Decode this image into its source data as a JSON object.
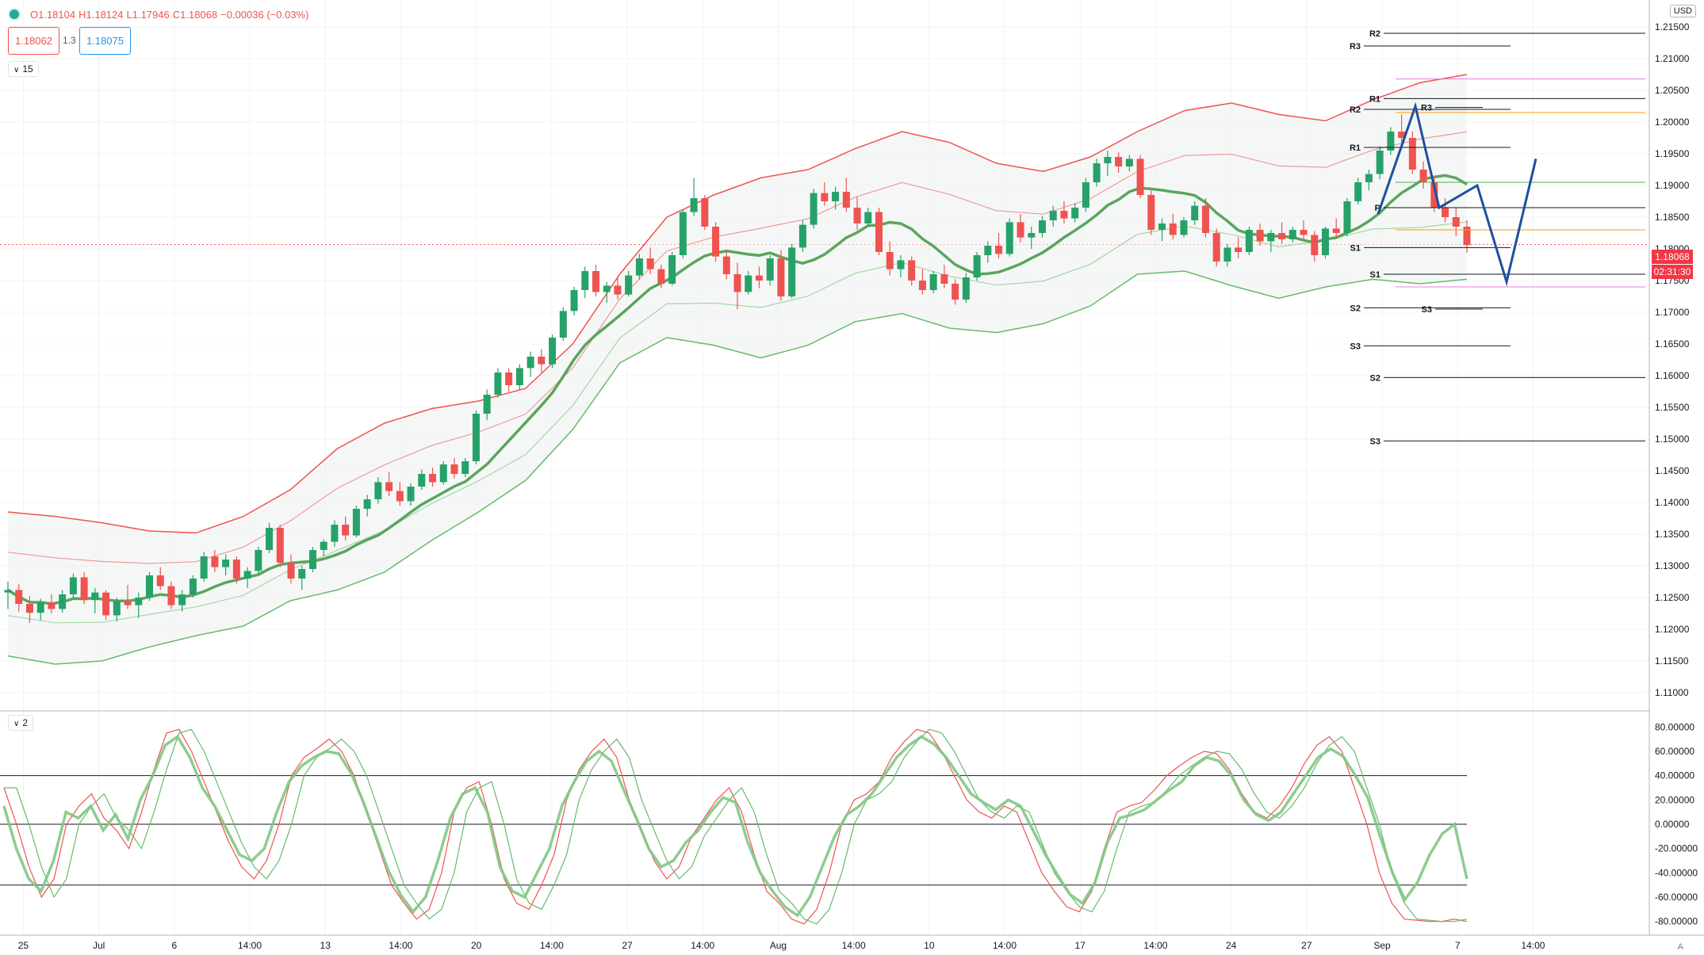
{
  "header": {
    "ohlc": {
      "open": "O1.18104",
      "high": "H1.18124",
      "low": "L1.17946",
      "close": "C1.18068",
      "change": "−0.00036 (−0.03%)"
    },
    "sell_price": "1.18062",
    "spread": "1.3",
    "buy_price": "1.18075",
    "main_pane_toggle": "15",
    "osc_pane_toggle": "2",
    "currency": "USD"
  },
  "price_axis_labels": [
    "1.21500",
    "1.21000",
    "1.20500",
    "1.20000",
    "1.19500",
    "1.19000",
    "1.18500",
    "1.18000",
    "1.17500",
    "1.17000",
    "1.16500",
    "1.16000",
    "1.15500",
    "1.15000",
    "1.14500",
    "1.14000",
    "1.13500",
    "1.13000",
    "1.12500",
    "1.12000",
    "1.11500",
    "1.11000"
  ],
  "current_price": {
    "value": "1.18068",
    "countdown": "02:31:30"
  },
  "osc_axis_labels": [
    "80.00000",
    "60.00000",
    "40.00000",
    "20.00000",
    "0.00000",
    "-20.00000",
    "-40.00000",
    "-60.00000",
    "-80.00000"
  ],
  "time_axis_labels": [
    "25",
    "Jul",
    "6",
    "14:00",
    "13",
    "14:00",
    "20",
    "14:00",
    "27",
    "14:00",
    "Aug",
    "14:00",
    "10",
    "14:00",
    "17",
    "14:00",
    "24",
    "27",
    "Sep",
    "7",
    "14:00"
  ],
  "pivot_labels": [
    "R2",
    "R3",
    "R1",
    "R2",
    "R3",
    "R1",
    "P",
    "S1",
    "S1",
    "S2",
    "S3",
    "S3",
    "S2",
    "S3"
  ],
  "chart_data": {
    "type": "candlestick",
    "symbol_quote": "USD",
    "y_range": [
      1.108,
      1.218
    ],
    "candles_ohlc": [
      [
        1.1258,
        1.1275,
        1.1232,
        1.1262
      ],
      [
        1.1262,
        1.1271,
        1.1228,
        1.124
      ],
      [
        1.124,
        1.1252,
        1.121,
        1.1226
      ],
      [
        1.1226,
        1.1248,
        1.1214,
        1.1242
      ],
      [
        1.1242,
        1.1255,
        1.1225,
        1.1232
      ],
      [
        1.1232,
        1.1262,
        1.1226,
        1.1255
      ],
      [
        1.1255,
        1.1288,
        1.1248,
        1.1282
      ],
      [
        1.1282,
        1.129,
        1.124,
        1.1246
      ],
      [
        1.1246,
        1.1265,
        1.1225,
        1.1258
      ],
      [
        1.1258,
        1.1262,
        1.1215,
        1.1222
      ],
      [
        1.1222,
        1.125,
        1.1212,
        1.1245
      ],
      [
        1.1245,
        1.127,
        1.1232,
        1.1238
      ],
      [
        1.1238,
        1.1258,
        1.1218,
        1.125
      ],
      [
        1.125,
        1.129,
        1.1245,
        1.1285
      ],
      [
        1.1285,
        1.1298,
        1.1262,
        1.1268
      ],
      [
        1.1268,
        1.1275,
        1.1232,
        1.1238
      ],
      [
        1.1238,
        1.1262,
        1.1228,
        1.1255
      ],
      [
        1.1255,
        1.1285,
        1.125,
        1.128
      ],
      [
        1.128,
        1.1322,
        1.1275,
        1.1315
      ],
      [
        1.1315,
        1.1325,
        1.129,
        1.1298
      ],
      [
        1.1298,
        1.1318,
        1.1285,
        1.131
      ],
      [
        1.131,
        1.1315,
        1.1272,
        1.128
      ],
      [
        1.128,
        1.1298,
        1.1265,
        1.1292
      ],
      [
        1.1292,
        1.133,
        1.1288,
        1.1325
      ],
      [
        1.1325,
        1.1368,
        1.132,
        1.136
      ],
      [
        1.136,
        1.1365,
        1.1298,
        1.1305
      ],
      [
        1.1305,
        1.1318,
        1.1272,
        1.128
      ],
      [
        1.128,
        1.13,
        1.1262,
        1.1295
      ],
      [
        1.1295,
        1.133,
        1.129,
        1.1325
      ],
      [
        1.1325,
        1.1342,
        1.1315,
        1.1338
      ],
      [
        1.1338,
        1.1372,
        1.133,
        1.1365
      ],
      [
        1.1365,
        1.1378,
        1.134,
        1.1348
      ],
      [
        1.1348,
        1.1395,
        1.1345,
        1.139
      ],
      [
        1.139,
        1.1412,
        1.1378,
        1.1405
      ],
      [
        1.1405,
        1.144,
        1.1398,
        1.1432
      ],
      [
        1.1432,
        1.1448,
        1.141,
        1.1418
      ],
      [
        1.1418,
        1.1432,
        1.1395,
        1.1402
      ],
      [
        1.1402,
        1.143,
        1.1395,
        1.1425
      ],
      [
        1.1425,
        1.1452,
        1.142,
        1.1445
      ],
      [
        1.1445,
        1.1455,
        1.1425,
        1.1432
      ],
      [
        1.1432,
        1.1465,
        1.1428,
        1.146
      ],
      [
        1.146,
        1.147,
        1.1438,
        1.1445
      ],
      [
        1.1445,
        1.147,
        1.144,
        1.1465
      ],
      [
        1.1465,
        1.1545,
        1.146,
        1.154
      ],
      [
        1.154,
        1.1578,
        1.153,
        1.157
      ],
      [
        1.157,
        1.1612,
        1.1565,
        1.1605
      ],
      [
        1.1605,
        1.1612,
        1.1575,
        1.1585
      ],
      [
        1.1585,
        1.1618,
        1.1578,
        1.1612
      ],
      [
        1.1612,
        1.1638,
        1.1598,
        1.163
      ],
      [
        1.163,
        1.1642,
        1.1605,
        1.1618
      ],
      [
        1.1618,
        1.1665,
        1.1612,
        1.166
      ],
      [
        1.166,
        1.1708,
        1.1655,
        1.1702
      ],
      [
        1.1702,
        1.174,
        1.1695,
        1.1735
      ],
      [
        1.1735,
        1.1772,
        1.1722,
        1.1765
      ],
      [
        1.1765,
        1.1775,
        1.1725,
        1.1732
      ],
      [
        1.1732,
        1.1748,
        1.1715,
        1.1742
      ],
      [
        1.1742,
        1.1755,
        1.172,
        1.1728
      ],
      [
        1.1728,
        1.1765,
        1.1725,
        1.1758
      ],
      [
        1.1758,
        1.1792,
        1.1752,
        1.1785
      ],
      [
        1.1785,
        1.1802,
        1.176,
        1.1768
      ],
      [
        1.1768,
        1.1775,
        1.1738,
        1.1745
      ],
      [
        1.1745,
        1.1795,
        1.1742,
        1.179
      ],
      [
        1.179,
        1.1862,
        1.1785,
        1.1858
      ],
      [
        1.1858,
        1.1912,
        1.1852,
        1.188
      ],
      [
        1.188,
        1.1885,
        1.183,
        1.1835
      ],
      [
        1.1835,
        1.1842,
        1.178,
        1.1788
      ],
      [
        1.1788,
        1.1795,
        1.1752,
        1.176
      ],
      [
        1.176,
        1.1778,
        1.1705,
        1.1732
      ],
      [
        1.1732,
        1.1765,
        1.1728,
        1.1758
      ],
      [
        1.1758,
        1.1772,
        1.1738,
        1.175
      ],
      [
        1.175,
        1.179,
        1.1742,
        1.1785
      ],
      [
        1.1785,
        1.1798,
        1.1718,
        1.1725
      ],
      [
        1.1725,
        1.1808,
        1.1722,
        1.1802
      ],
      [
        1.1802,
        1.1845,
        1.1795,
        1.1838
      ],
      [
        1.1838,
        1.1895,
        1.1832,
        1.1888
      ],
      [
        1.1888,
        1.1905,
        1.1868,
        1.1875
      ],
      [
        1.1875,
        1.1898,
        1.1862,
        1.189
      ],
      [
        1.189,
        1.1912,
        1.1858,
        1.1865
      ],
      [
        1.1865,
        1.1882,
        1.183,
        1.184
      ],
      [
        1.184,
        1.1865,
        1.1835,
        1.1858
      ],
      [
        1.1858,
        1.1865,
        1.179,
        1.1795
      ],
      [
        1.1795,
        1.1812,
        1.1758,
        1.1768
      ],
      [
        1.1768,
        1.179,
        1.1755,
        1.1782
      ],
      [
        1.1782,
        1.1788,
        1.1742,
        1.175
      ],
      [
        1.175,
        1.1768,
        1.1728,
        1.1735
      ],
      [
        1.1735,
        1.1765,
        1.173,
        1.176
      ],
      [
        1.176,
        1.1775,
        1.1738,
        1.1745
      ],
      [
        1.1745,
        1.1752,
        1.1712,
        1.172
      ],
      [
        1.172,
        1.1762,
        1.1715,
        1.1755
      ],
      [
        1.1755,
        1.1795,
        1.175,
        1.179
      ],
      [
        1.179,
        1.1812,
        1.1778,
        1.1805
      ],
      [
        1.1805,
        1.1825,
        1.1785,
        1.1792
      ],
      [
        1.1792,
        1.1848,
        1.1788,
        1.1842
      ],
      [
        1.1842,
        1.1855,
        1.181,
        1.1818
      ],
      [
        1.1818,
        1.1835,
        1.18,
        1.1825
      ],
      [
        1.1825,
        1.1852,
        1.1818,
        1.1845
      ],
      [
        1.1845,
        1.1868,
        1.1835,
        1.186
      ],
      [
        1.186,
        1.1875,
        1.184,
        1.1848
      ],
      [
        1.1848,
        1.1872,
        1.1842,
        1.1865
      ],
      [
        1.1865,
        1.1912,
        1.1858,
        1.1905
      ],
      [
        1.1905,
        1.1942,
        1.1898,
        1.1935
      ],
      [
        1.1935,
        1.1955,
        1.1915,
        1.1945
      ],
      [
        1.1945,
        1.1952,
        1.192,
        1.193
      ],
      [
        1.193,
        1.1948,
        1.1922,
        1.1942
      ],
      [
        1.1942,
        1.1948,
        1.188,
        1.1885
      ],
      [
        1.1885,
        1.1892,
        1.1822,
        1.183
      ],
      [
        1.183,
        1.1848,
        1.1812,
        1.184
      ],
      [
        1.184,
        1.1855,
        1.1815,
        1.1822
      ],
      [
        1.1822,
        1.185,
        1.1818,
        1.1845
      ],
      [
        1.1845,
        1.1875,
        1.1838,
        1.1868
      ],
      [
        1.1868,
        1.188,
        1.1818,
        1.1825
      ],
      [
        1.1825,
        1.1832,
        1.1772,
        1.178
      ],
      [
        1.178,
        1.1808,
        1.1772,
        1.1802
      ],
      [
        1.1802,
        1.1818,
        1.1785,
        1.1795
      ],
      [
        1.1795,
        1.1835,
        1.179,
        1.183
      ],
      [
        1.183,
        1.184,
        1.1805,
        1.1812
      ],
      [
        1.1812,
        1.183,
        1.1795,
        1.1825
      ],
      [
        1.1825,
        1.1842,
        1.1808,
        1.1815
      ],
      [
        1.1815,
        1.1835,
        1.181,
        1.183
      ],
      [
        1.183,
        1.1845,
        1.1815,
        1.1822
      ],
      [
        1.1822,
        1.1828,
        1.178,
        1.179
      ],
      [
        1.179,
        1.1835,
        1.1785,
        1.1832
      ],
      [
        1.1832,
        1.1848,
        1.1818,
        1.1825
      ],
      [
        1.1825,
        1.188,
        1.182,
        1.1875
      ],
      [
        1.1875,
        1.1912,
        1.187,
        1.1905
      ],
      [
        1.1905,
        1.1925,
        1.1892,
        1.1918
      ],
      [
        1.1918,
        1.1962,
        1.191,
        1.1955
      ],
      [
        1.1955,
        1.1992,
        1.1948,
        1.1985
      ],
      [
        1.1985,
        1.2012,
        1.1968,
        1.1975
      ],
      [
        1.1975,
        1.1985,
        1.1918,
        1.1925
      ],
      [
        1.1925,
        1.1938,
        1.1895,
        1.1905
      ],
      [
        1.1905,
        1.1915,
        1.1858,
        1.1865
      ],
      [
        1.1865,
        1.188,
        1.1842,
        1.185
      ],
      [
        1.185,
        1.1865,
        1.182,
        1.1835
      ],
      [
        1.1835,
        1.1845,
        1.1794,
        1.1806
      ]
    ],
    "bollinger": {
      "outer_upper": [
        1.1385,
        1.1378,
        1.1368,
        1.1355,
        1.1352,
        1.1378,
        1.142,
        1.1485,
        1.1525,
        1.1548,
        1.156,
        1.158,
        1.165,
        1.176,
        1.185,
        1.1885,
        1.1912,
        1.1925,
        1.1958,
        1.1985,
        1.1968,
        1.1935,
        1.1922,
        1.1945,
        1.1985,
        1.2018,
        1.203,
        1.2012,
        1.2002,
        1.2035,
        1.2062,
        1.2075
      ],
      "outer_lower": [
        1.1158,
        1.1145,
        1.115,
        1.1172,
        1.119,
        1.1205,
        1.1245,
        1.1262,
        1.129,
        1.134,
        1.1385,
        1.1435,
        1.1515,
        1.162,
        1.166,
        1.1648,
        1.1628,
        1.1648,
        1.1685,
        1.1698,
        1.1675,
        1.1668,
        1.1682,
        1.171,
        1.176,
        1.1765,
        1.1742,
        1.1722,
        1.174,
        1.1752,
        1.1745,
        1.1752
      ]
    },
    "pivot_levels": {
      "R2": 1.214,
      "R3": 1.212,
      "R1": 1.2037,
      "R2b": 1.202,
      "R3b": 1.2023,
      "R1b": 1.196,
      "P": 1.1865,
      "S1": 1.1802,
      "S1b": 1.176,
      "S2": 1.1707,
      "S3": 1.1705,
      "S3b": 1.1647,
      "S2b": 1.1597,
      "S3c": 1.1497
    },
    "projection_zigzag": [
      [
        1.1855,
        1.2025
      ],
      [
        1.2025,
        1.1865
      ],
      [
        1.1865,
        1.19
      ],
      [
        1.19,
        1.1748
      ],
      [
        1.1748,
        1.1942
      ]
    ],
    "oscillator": {
      "type": "stochastic",
      "levels": [
        40,
        0,
        -50
      ],
      "y_range": [
        -88,
        88
      ],
      "main": [
        15,
        -20,
        -45,
        -55,
        -30,
        10,
        5,
        15,
        -5,
        8,
        -12,
        20,
        40,
        65,
        72,
        55,
        30,
        15,
        -5,
        -25,
        -30,
        -20,
        10,
        35,
        48,
        55,
        60,
        58,
        42,
        18,
        -10,
        -38,
        -58,
        -72,
        -60,
        -30,
        5,
        25,
        30,
        10,
        -35,
        -55,
        -60,
        -40,
        -20,
        15,
        35,
        52,
        60,
        52,
        28,
        5,
        -20,
        -35,
        -30,
        -15,
        -5,
        10,
        22,
        18,
        -15,
        -40,
        -55,
        -68,
        -75,
        -60,
        -35,
        -10,
        8,
        15,
        25,
        40,
        55,
        65,
        72,
        66,
        55,
        40,
        25,
        18,
        12,
        20,
        15,
        -5,
        -25,
        -42,
        -58,
        -65,
        -48,
        -15,
        5,
        8,
        12,
        20,
        28,
        35,
        48,
        55,
        52,
        40,
        20,
        8,
        3,
        10,
        25,
        40,
        55,
        62,
        56,
        40,
        22,
        -10,
        -40,
        -62,
        -48,
        -25,
        -8,
        0,
        -45
      ],
      "signal": [
        30,
        0,
        -35,
        -60,
        -45,
        0,
        15,
        25,
        5,
        -5,
        -20,
        10,
        45,
        75,
        78,
        60,
        35,
        10,
        -15,
        -35,
        -45,
        -30,
        0,
        40,
        55,
        62,
        70,
        60,
        40,
        10,
        -20,
        -50,
        -65,
        -78,
        -70,
        -40,
        10,
        30,
        35,
        0,
        -45,
        -65,
        -70,
        -50,
        -25,
        20,
        45,
        60,
        70,
        55,
        20,
        -5,
        -30,
        -45,
        -35,
        -10,
        5,
        20,
        30,
        10,
        -25,
        -55,
        -65,
        -78,
        -82,
        -70,
        -40,
        0,
        20,
        25,
        35,
        55,
        68,
        78,
        75,
        60,
        40,
        20,
        10,
        5,
        15,
        10,
        -15,
        -40,
        -55,
        -68,
        -72,
        -55,
        -20,
        10,
        15,
        18,
        28,
        40,
        48,
        55,
        60,
        58,
        45,
        25,
        10,
        5,
        15,
        30,
        50,
        65,
        72,
        60,
        30,
        0,
        -40,
        -65,
        -78,
        -79,
        -80,
        -80,
        -78,
        -80
      ]
    }
  }
}
